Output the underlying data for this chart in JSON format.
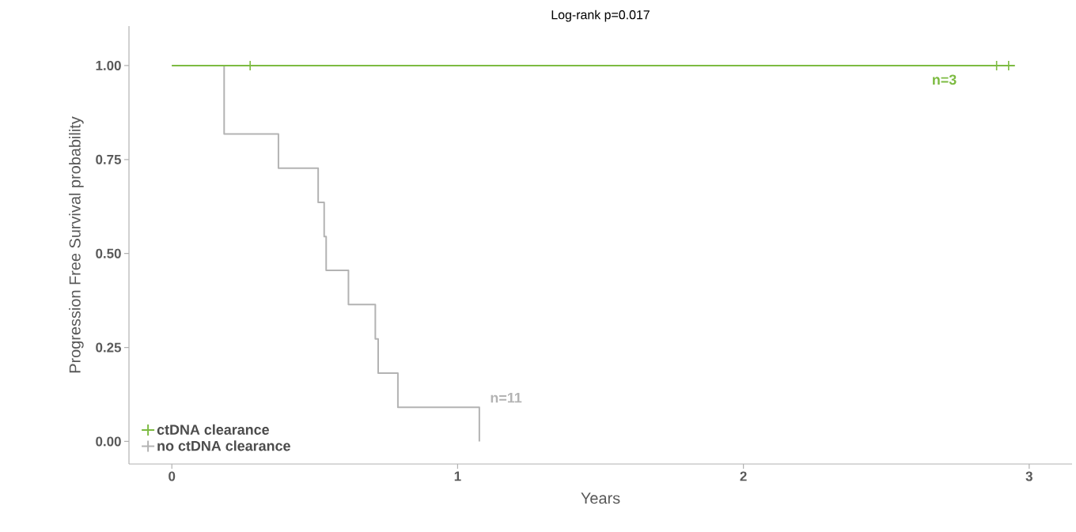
{
  "chart_data": {
    "type": "step",
    "title": "Log-rank p=0.017",
    "xlabel": "Years",
    "ylabel": "Progression Free Survival probability",
    "xlim": [
      -0.15,
      3.15
    ],
    "ylim": [
      -0.06,
      1.105
    ],
    "xticks": [
      0,
      1,
      2,
      3
    ],
    "yticks": [
      {
        "value": 0,
        "label": "0.00"
      },
      {
        "value": 0.25,
        "label": "0.25"
      },
      {
        "value": 0.5,
        "label": "0.50"
      },
      {
        "value": 0.75,
        "label": "0.75"
      },
      {
        "value": 1,
        "label": "1.00"
      }
    ],
    "grid": false,
    "legend": "bottom left",
    "series": [
      {
        "name": "ctDNA clearance",
        "color": "#7dbb42",
        "x": [
          0,
          2.95
        ],
        "values": [
          1,
          1
        ]
      },
      {
        "name": "no ctDNA clearance",
        "color": "#b3b3b3",
        "x": [
          0,
          0.183,
          0.373,
          0.512,
          0.533,
          0.54,
          0.618,
          0.712,
          0.722,
          0.791,
          1.076
        ],
        "values": [
          1,
          0.818,
          0.727,
          0.636,
          0.545,
          0.455,
          0.364,
          0.273,
          0.182,
          0.091,
          0
        ]
      },
      {
        "type": "scatter",
        "marker": "cross",
        "color": "#7dbb42",
        "x": [
          0.274,
          2.886,
          2.928
        ],
        "values": [
          1,
          1,
          1
        ]
      }
    ],
    "annotations": [
      "n=3",
      "n=11"
    ]
  }
}
